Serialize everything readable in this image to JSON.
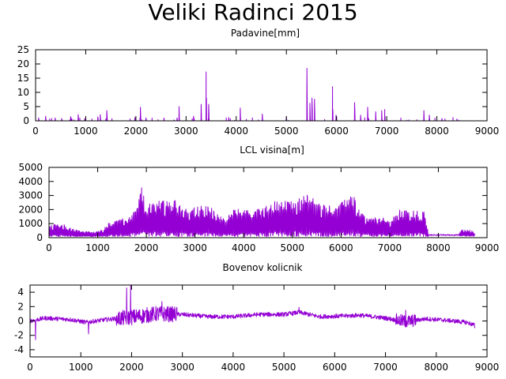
{
  "figure": {
    "title": "Veliki Radinci 2015"
  },
  "chart_data": [
    {
      "type": "line",
      "title": "Padavine[mm]",
      "xlim": [
        0,
        9000
      ],
      "ylim": [
        0,
        25
      ],
      "xticks": [
        0,
        1000,
        2000,
        3000,
        4000,
        5000,
        6000,
        7000,
        8000,
        9000
      ],
      "yticks": [
        0,
        5,
        10,
        15,
        20,
        25
      ],
      "grid": false,
      "color": "#9400d3",
      "x_extent": [
        0,
        8760
      ],
      "peaks": [
        {
          "x": 60,
          "y": 1.0
        },
        {
          "x": 200,
          "y": 1.6
        },
        {
          "x": 390,
          "y": 1.0
        },
        {
          "x": 520,
          "y": 0.8
        },
        {
          "x": 700,
          "y": 1.5
        },
        {
          "x": 850,
          "y": 2.2
        },
        {
          "x": 980,
          "y": 0.8
        },
        {
          "x": 1240,
          "y": 1.4
        },
        {
          "x": 1290,
          "y": 2.2
        },
        {
          "x": 1420,
          "y": 3.6
        },
        {
          "x": 1980,
          "y": 1.2
        },
        {
          "x": 2090,
          "y": 4.8
        },
        {
          "x": 2200,
          "y": 1.0
        },
        {
          "x": 2560,
          "y": 1.0
        },
        {
          "x": 2820,
          "y": 1.0
        },
        {
          "x": 2860,
          "y": 5.0
        },
        {
          "x": 3150,
          "y": 1.6
        },
        {
          "x": 3300,
          "y": 5.8
        },
        {
          "x": 3400,
          "y": 17.2
        },
        {
          "x": 3450,
          "y": 5.8
        },
        {
          "x": 3850,
          "y": 1.2
        },
        {
          "x": 4080,
          "y": 4.5
        },
        {
          "x": 4520,
          "y": 2.4
        },
        {
          "x": 5000,
          "y": 1.4
        },
        {
          "x": 5410,
          "y": 18.5
        },
        {
          "x": 5470,
          "y": 6.2
        },
        {
          "x": 5510,
          "y": 8.0
        },
        {
          "x": 5560,
          "y": 7.6
        },
        {
          "x": 5920,
          "y": 12.0
        },
        {
          "x": 5990,
          "y": 2.0
        },
        {
          "x": 6360,
          "y": 6.4
        },
        {
          "x": 6480,
          "y": 2.0
        },
        {
          "x": 6620,
          "y": 4.8
        },
        {
          "x": 6780,
          "y": 3.2
        },
        {
          "x": 6900,
          "y": 3.6
        },
        {
          "x": 6960,
          "y": 4.0
        },
        {
          "x": 7740,
          "y": 3.6
        },
        {
          "x": 7850,
          "y": 2.0
        },
        {
          "x": 8100,
          "y": 0.8
        },
        {
          "x": 8400,
          "y": 0.6
        }
      ]
    },
    {
      "type": "line",
      "title": "LCL visina[m]",
      "xlim": [
        0,
        9000
      ],
      "ylim": [
        0,
        5000
      ],
      "xticks": [
        0,
        1000,
        2000,
        3000,
        4000,
        5000,
        6000,
        7000,
        8000,
        9000
      ],
      "yticks": [
        0,
        1000,
        2000,
        3000,
        4000,
        5000
      ],
      "grid": false,
      "color": "#9400d3",
      "x_extent": [
        0,
        8760
      ],
      "envelope": [
        {
          "x": 0,
          "y": 900
        },
        {
          "x": 300,
          "y": 1000
        },
        {
          "x": 600,
          "y": 500
        },
        {
          "x": 900,
          "y": 400
        },
        {
          "x": 1100,
          "y": 600
        },
        {
          "x": 1200,
          "y": 1000
        },
        {
          "x": 1400,
          "y": 1300
        },
        {
          "x": 1600,
          "y": 1400
        },
        {
          "x": 1800,
          "y": 2000
        },
        {
          "x": 1900,
          "y": 3600
        },
        {
          "x": 2000,
          "y": 2400
        },
        {
          "x": 2200,
          "y": 2600
        },
        {
          "x": 2500,
          "y": 2900
        },
        {
          "x": 2800,
          "y": 2300
        },
        {
          "x": 3000,
          "y": 2200
        },
        {
          "x": 3200,
          "y": 2300
        },
        {
          "x": 3400,
          "y": 2100
        },
        {
          "x": 3600,
          "y": 1300
        },
        {
          "x": 3800,
          "y": 2000
        },
        {
          "x": 4000,
          "y": 2100
        },
        {
          "x": 4200,
          "y": 2000
        },
        {
          "x": 4400,
          "y": 2200
        },
        {
          "x": 4700,
          "y": 2700
        },
        {
          "x": 5000,
          "y": 2600
        },
        {
          "x": 5200,
          "y": 3000
        },
        {
          "x": 5350,
          "y": 3200
        },
        {
          "x": 5500,
          "y": 2500
        },
        {
          "x": 5700,
          "y": 2500
        },
        {
          "x": 5900,
          "y": 2200
        },
        {
          "x": 6050,
          "y": 2600
        },
        {
          "x": 6200,
          "y": 3500
        },
        {
          "x": 6400,
          "y": 1900
        },
        {
          "x": 6600,
          "y": 1400
        },
        {
          "x": 6800,
          "y": 1500
        },
        {
          "x": 7000,
          "y": 1200
        },
        {
          "x": 7200,
          "y": 2000
        },
        {
          "x": 7500,
          "y": 2000
        },
        {
          "x": 7700,
          "y": 1900
        },
        {
          "x": 7800,
          "y": 200
        },
        {
          "x": 8400,
          "y": 200
        },
        {
          "x": 8500,
          "y": 700
        },
        {
          "x": 8700,
          "y": 500
        },
        {
          "x": 8760,
          "y": 200
        }
      ]
    },
    {
      "type": "line",
      "title": "Bovenov kolicnik",
      "xlim": [
        0,
        9000
      ],
      "ylim": [
        -5,
        5
      ],
      "xticks": [
        0,
        1000,
        2000,
        3000,
        4000,
        5000,
        6000,
        7000,
        8000,
        9000
      ],
      "yticks": [
        -4,
        -2,
        0,
        2,
        4
      ],
      "grid": false,
      "color": "#9400d3",
      "x_extent": [
        0,
        8760
      ],
      "baseline": [
        {
          "x": 0,
          "y": 0
        },
        {
          "x": 300,
          "y": 0.4
        },
        {
          "x": 800,
          "y": 0.2
        },
        {
          "x": 1100,
          "y": -0.2
        },
        {
          "x": 1500,
          "y": 0.2
        },
        {
          "x": 2000,
          "y": 0.5
        },
        {
          "x": 2500,
          "y": 1.0
        },
        {
          "x": 3000,
          "y": 0.9
        },
        {
          "x": 3500,
          "y": 0.6
        },
        {
          "x": 4000,
          "y": 0.6
        },
        {
          "x": 4500,
          "y": 0.9
        },
        {
          "x": 5000,
          "y": 0.9
        },
        {
          "x": 5300,
          "y": 1.2
        },
        {
          "x": 5700,
          "y": 0.6
        },
        {
          "x": 6200,
          "y": 0.7
        },
        {
          "x": 6500,
          "y": 0.8
        },
        {
          "x": 7000,
          "y": 0.4
        },
        {
          "x": 7400,
          "y": -0.1
        },
        {
          "x": 7800,
          "y": 0.3
        },
        {
          "x": 8200,
          "y": 0.1
        },
        {
          "x": 8600,
          "y": -0.2
        },
        {
          "x": 8760,
          "y": -0.6
        }
      ],
      "spikes": [
        {
          "x": 110,
          "y": -2.6
        },
        {
          "x": 1150,
          "y": -1.8
        },
        {
          "x": 1900,
          "y": 4.6
        },
        {
          "x": 1980,
          "y": 5.0
        },
        {
          "x": 2600,
          "y": 2.7
        },
        {
          "x": 5300,
          "y": 1.9
        },
        {
          "x": 7400,
          "y": 1.5
        },
        {
          "x": 8760,
          "y": -1.0
        }
      ]
    }
  ]
}
